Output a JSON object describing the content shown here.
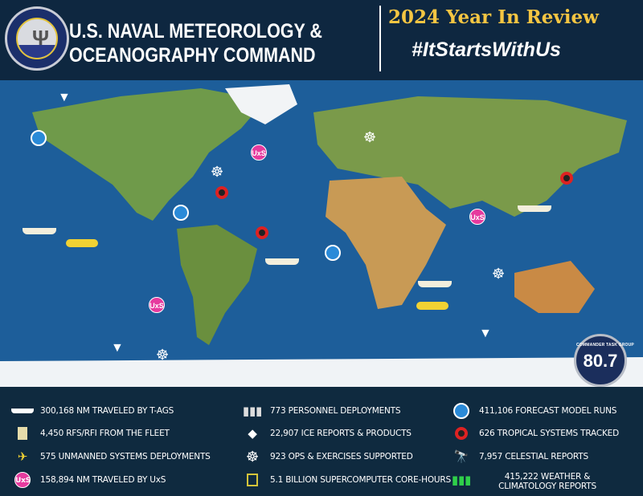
{
  "header": {
    "seal_text": "NAVAL METEOROLOGY AND OCEANOGRAPHY COMMAND",
    "org_line1": "U.S. NAVAL METEOROLOGY &",
    "org_line2": "OCEANOGRAPHY COMMAND",
    "title": "2024 Year In Review",
    "hashtag": "#ItStartsWithUs"
  },
  "badge": {
    "text": "COMMANDER TASK GROUP",
    "number": "80.7"
  },
  "colors": {
    "background": "#0e2740",
    "title": "#f4c542",
    "ocean": "#1d5e9a"
  },
  "legend": [
    {
      "icon": "ship-icon",
      "label": "300,168 NM TRAVELED BY T-AGS"
    },
    {
      "icon": "document-icon",
      "label": "4,450 RFS/RFI FROM THE FLEET"
    },
    {
      "icon": "glider-icon",
      "label": "575 UNMANNED SYSTEMS DEPLOYMENTS"
    },
    {
      "icon": "uxs-icon",
      "label": "158,894 NM TRAVELED BY UxS",
      "icon_text": "UxS"
    },
    {
      "icon": "personnel-icon",
      "label": "773 PERSONNEL DEPLOYMENTS"
    },
    {
      "icon": "iceberg-icon",
      "label": "22,907 ICE REPORTS & PRODUCTS"
    },
    {
      "icon": "ship-wheel-icon",
      "label": "923 OPS & EXERCISES SUPPORTED"
    },
    {
      "icon": "processor-chip-icon",
      "label": "5.1 BILLION SUPERCOMPUTER CORE-HOURS"
    },
    {
      "icon": "wave-icon",
      "label": "411,106 FORECAST MODEL RUNS"
    },
    {
      "icon": "hurricane-icon",
      "label": "626 TROPICAL SYSTEMS TRACKED"
    },
    {
      "icon": "telescope-icon",
      "label": "7,957 CELESTIAL REPORTS"
    },
    {
      "icon": "weather-chart-icon",
      "label": "415,222 WEATHER & CLIMATOLOGY REPORTS"
    }
  ]
}
